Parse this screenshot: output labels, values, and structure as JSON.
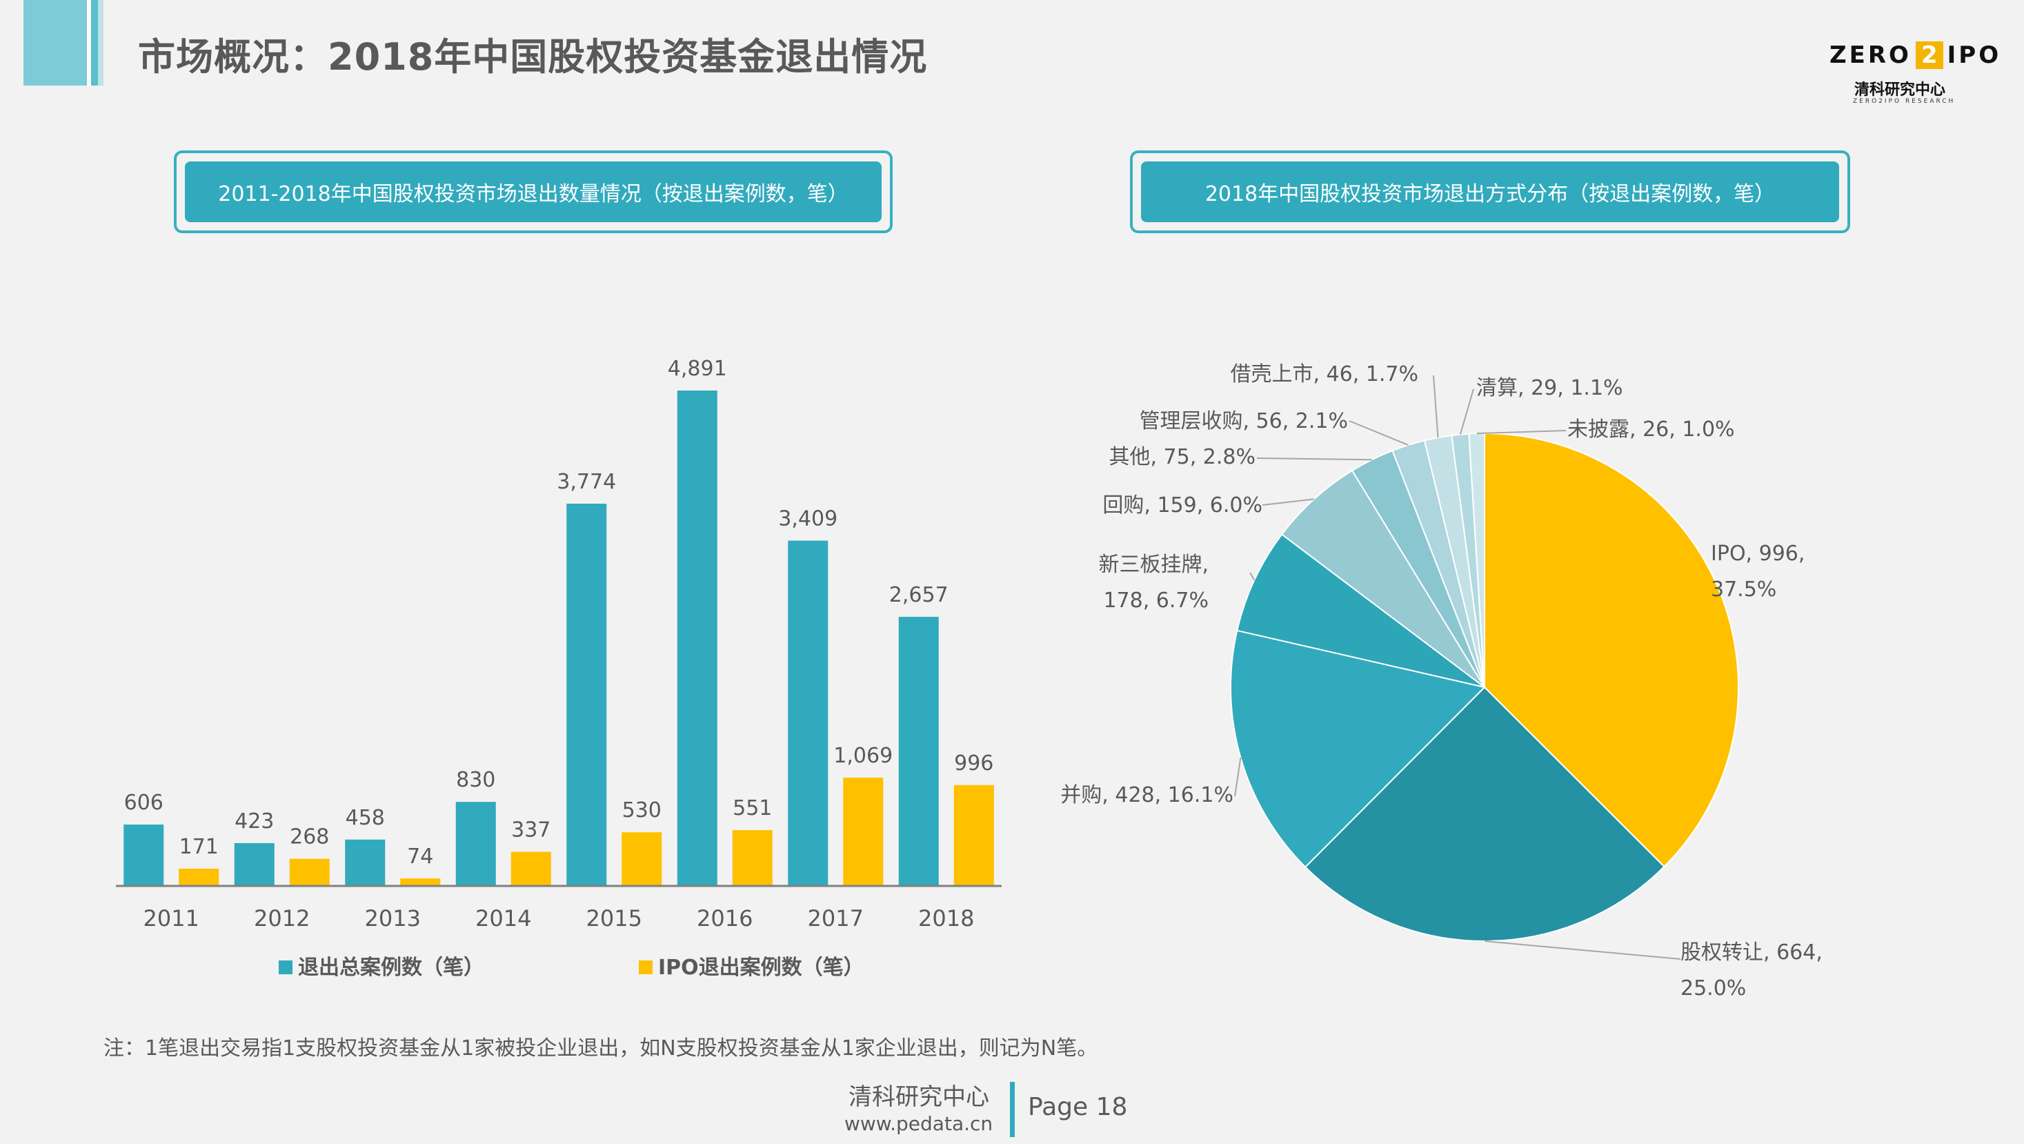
{
  "header": {
    "title": "市场概况：2018年中国股权投资基金退出情况",
    "logo": {
      "part1": "ZERO",
      "part2": "2",
      "part3": "IPO",
      "cn": "清科研究中心",
      "en": "ZERO2IPO RESEARCH"
    }
  },
  "panels": {
    "left_title": "2011-2018年中国股权投资市场退出数量情况（按退出案例数，笔）",
    "right_title": "2018年中国股权投资市场退出方式分布（按退出案例数，笔）"
  },
  "chart_data": [
    {
      "type": "bar",
      "title": "2011-2018年中国股权投资市场退出数量情况（按退出案例数，笔）",
      "categories": [
        "2011",
        "2012",
        "2013",
        "2014",
        "2015",
        "2016",
        "2017",
        "2018"
      ],
      "series": [
        {
          "name": "退出总案例数（笔）",
          "values": [
            606,
            423,
            458,
            830,
            3774,
            4891,
            3409,
            2657
          ],
          "labels": [
            "606",
            "423",
            "458",
            "830",
            "3,774",
            "4,891",
            "3,409",
            "2,657"
          ],
          "color": "#31aabd"
        },
        {
          "name": "IPO退出案例数（笔）",
          "values": [
            171,
            268,
            74,
            337,
            530,
            551,
            1069,
            996
          ],
          "labels": [
            "171",
            "268",
            "74",
            "337",
            "530",
            "551",
            "1,069",
            "996"
          ],
          "color": "#ffc000"
        }
      ],
      "ylim": [
        0,
        5000
      ],
      "legend": "bottom",
      "grid": false
    },
    {
      "type": "pie",
      "title": "2018年中国股权投资市场退出方式分布（按退出案例数，笔）",
      "slices": [
        {
          "name": "IPO",
          "value": 996,
          "percent": 37.5,
          "label_lines": [
            "IPO, 996,",
            "37.5%"
          ],
          "color": "#ffc000"
        },
        {
          "name": "股权转让",
          "value": 664,
          "percent": 25.0,
          "label_lines": [
            "股权转让, 664,",
            "25.0%"
          ],
          "color": "#2592a3"
        },
        {
          "name": "并购",
          "value": 428,
          "percent": 16.1,
          "label_lines": [
            "并购, 428, 16.1%"
          ],
          "color": "#31aabd"
        },
        {
          "name": "新三板挂牌",
          "value": 178,
          "percent": 6.7,
          "label_lines": [
            "新三板挂牌,",
            "178, 6.7%"
          ],
          "color": "#2da6b8"
        },
        {
          "name": "回购",
          "value": 159,
          "percent": 6.0,
          "label_lines": [
            "回购, 159, 6.0%"
          ],
          "color": "#97c9d3"
        },
        {
          "name": "其他",
          "value": 75,
          "percent": 2.8,
          "label_lines": [
            "其他, 75, 2.8%"
          ],
          "color": "#8ac6d0"
        },
        {
          "name": "管理层收购",
          "value": 56,
          "percent": 2.1,
          "label_lines": [
            "管理层收购, 56, 2.1%"
          ],
          "color": "#acd5dd"
        },
        {
          "name": "借壳上市",
          "value": 46,
          "percent": 1.7,
          "label_lines": [
            "借壳上市, 46, 1.7%"
          ],
          "color": "#c3e0e6"
        },
        {
          "name": "清算",
          "value": 29,
          "percent": 1.1,
          "label_lines": [
            "清算, 29, 1.1%"
          ],
          "color": "#b3d9e0"
        },
        {
          "name": "未披露",
          "value": 26,
          "percent": 1.0,
          "label_lines": [
            "未披露, 26, 1.0%"
          ],
          "color": "#cde6eb"
        }
      ]
    }
  ],
  "footnote": "注：1笔退出交易指1支股权投资基金从1家被投企业退出，如N支股权投资基金从1家企业退出，则记为N笔。",
  "footer": {
    "org": "清科研究中心",
    "url": "www.pedata.cn",
    "page": "Page 18"
  }
}
